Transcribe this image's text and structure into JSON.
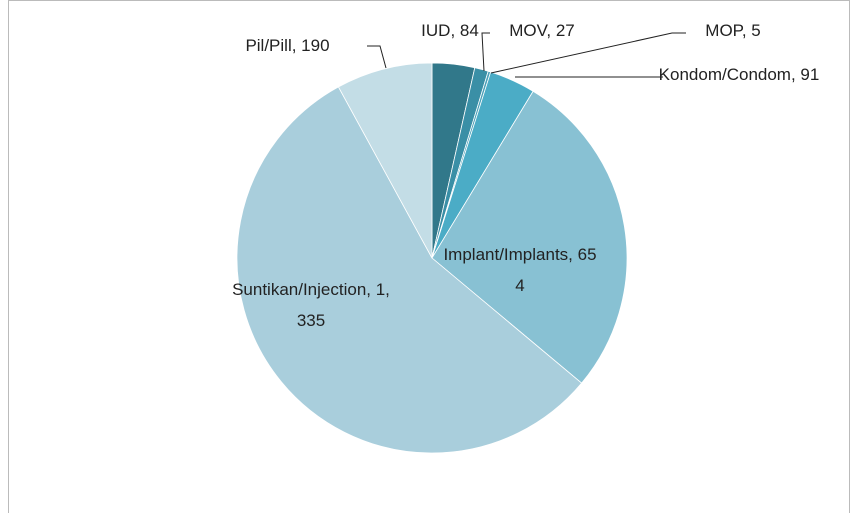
{
  "chart_data": {
    "type": "pie",
    "values": [
      84,
      27,
      5,
      91,
      654,
      1335,
      190
    ],
    "value_labels": [
      "IUD, 84",
      "MOV, 27",
      "MOP, 5",
      "Kondom/Condom, 91",
      "Implant/Implants, 654",
      "Suntikan/Injection, 1,335",
      "Pil/Pill, 190"
    ],
    "colors": [
      "#31788a",
      "#3a8fa6",
      "#4aa0b8",
      "#4bacc6",
      "#88c1d3",
      "#a9cedc",
      "#c3dde6"
    ]
  }
}
